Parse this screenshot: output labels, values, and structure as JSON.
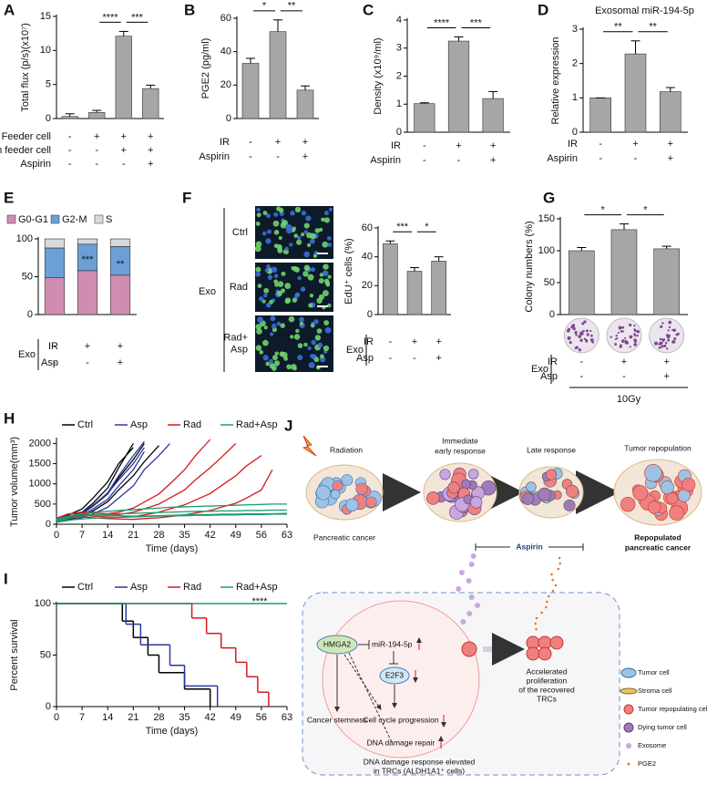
{
  "chart_data": [
    {
      "panel": "A",
      "type": "bar",
      "ylabel": "Total flux (p/s)(x10⁷)",
      "values": [
        0.3,
        0.9,
        12.1,
        4.4
      ],
      "errors": [
        0.4,
        0.3,
        0.7,
        0.5
      ],
      "color": "#a6a6a6",
      "ylim": [
        0,
        15
      ],
      "yticks": [
        0,
        5,
        10,
        15
      ],
      "conditions": [
        {
          "label": "Feeder cell",
          "values": [
            "-",
            "+",
            "+",
            "+"
          ]
        },
        {
          "label": "IR in feeder cell",
          "values": [
            "-",
            "-",
            "+",
            "+"
          ]
        },
        {
          "label": "Aspirin",
          "values": [
            "-",
            "-",
            "-",
            "+"
          ]
        }
      ],
      "comparisons": [
        {
          "label": "****",
          "between": [
            1,
            2
          ]
        },
        {
          "label": "***",
          "between": [
            2,
            3
          ]
        }
      ]
    },
    {
      "panel": "B",
      "type": "bar",
      "ylabel": "PGE2 (pg/ml)",
      "values": [
        33,
        52,
        17
      ],
      "errors": [
        3,
        7,
        2.5
      ],
      "color": "#a6a6a6",
      "ylim": [
        0,
        60
      ],
      "yticks": [
        0,
        20,
        40,
        60
      ],
      "conditions": [
        {
          "label": "IR",
          "values": [
            "-",
            "+",
            "+"
          ]
        },
        {
          "label": "Aspirin",
          "values": [
            "-",
            "-",
            "+"
          ]
        }
      ],
      "comparisons": [
        {
          "label": "*",
          "between": [
            0,
            1
          ]
        },
        {
          "label": "**",
          "between": [
            1,
            2
          ]
        }
      ]
    },
    {
      "panel": "C",
      "type": "bar",
      "ylabel": "Density (x10⁹/ml)",
      "values": [
        1.02,
        3.25,
        1.2
      ],
      "errors": [
        0.03,
        0.15,
        0.25
      ],
      "color": "#a6a6a6",
      "ylim": [
        0,
        4
      ],
      "yticks": [
        0,
        1,
        2,
        3,
        4
      ],
      "conditions": [
        {
          "label": "IR",
          "values": [
            "-",
            "+",
            "+"
          ]
        },
        {
          "label": "Aspirin",
          "values": [
            "-",
            "-",
            "+"
          ]
        }
      ],
      "comparisons": [
        {
          "label": "****",
          "between": [
            0,
            1
          ]
        },
        {
          "label": "***",
          "between": [
            1,
            2
          ]
        }
      ]
    },
    {
      "panel": "D",
      "type": "bar",
      "title": "Exosomal miR-194-5p",
      "ylabel": "Relative expression",
      "values": [
        1,
        2.28,
        1.18
      ],
      "errors": [
        0,
        0.38,
        0.12
      ],
      "color": "#a6a6a6",
      "ylim": [
        0,
        3
      ],
      "yticks": [
        0,
        1,
        2,
        3
      ],
      "conditions": [
        {
          "label": "IR",
          "values": [
            "-",
            "+",
            "+"
          ]
        },
        {
          "label": "Aspirin",
          "values": [
            "-",
            "-",
            "+"
          ]
        }
      ],
      "comparisons": [
        {
          "label": "**",
          "between": [
            0,
            1
          ]
        },
        {
          "label": "**",
          "between": [
            1,
            2
          ]
        }
      ]
    },
    {
      "panel": "E",
      "type": "stacked_bar",
      "series": [
        {
          "name": "G0-G1",
          "color": "#cf8db1",
          "values": [
            49,
            58,
            52
          ]
        },
        {
          "name": "G2-M",
          "color": "#6c9fd6",
          "values": [
            39,
            35,
            38
          ]
        },
        {
          "name": "S",
          "color": "#d9d9d9",
          "values": [
            12,
            7,
            10
          ]
        }
      ],
      "ylim": [
        0,
        100
      ],
      "yticks": [
        0,
        50,
        100
      ],
      "annotations": [
        {
          "label": "***",
          "category": 1
        },
        {
          "label": "**",
          "category": 2
        }
      ],
      "group_label": "Exo",
      "conditions": [
        {
          "label": "IR",
          "values": [
            "-",
            "+",
            "+"
          ]
        },
        {
          "label": "Asp",
          "values": [
            "-",
            "-",
            "+"
          ]
        }
      ]
    },
    {
      "panel": "F",
      "type": "bar",
      "image_labels": [
        [
          "Ctrl"
        ],
        [
          "Rad"
        ],
        [
          "Rad+",
          "Asp"
        ]
      ],
      "image_group_label": "Exo",
      "ylabel": "EdU⁺ cells (%)",
      "values": [
        49,
        30,
        37
      ],
      "errors": [
        2,
        2.5,
        3
      ],
      "color": "#a6a6a6",
      "ylim": [
        0,
        60
      ],
      "yticks": [
        0,
        20,
        40,
        60
      ],
      "group_label": "Exo",
      "conditions": [
        {
          "label": "IR",
          "values": [
            "-",
            "+",
            "+"
          ]
        },
        {
          "label": "Asp",
          "values": [
            "-",
            "-",
            "+"
          ]
        }
      ],
      "comparisons": [
        {
          "label": "***",
          "between": [
            0,
            1
          ]
        },
        {
          "label": "*",
          "between": [
            1,
            2
          ]
        }
      ]
    },
    {
      "panel": "G",
      "type": "bar",
      "ylabel": "Colony numbers (%)",
      "values": [
        100,
        133,
        103
      ],
      "errors": [
        5,
        9,
        4
      ],
      "color": "#a6a6a6",
      "ylim": [
        0,
        150
      ],
      "yticks": [
        0,
        50,
        100,
        150
      ],
      "group_label": "Exo",
      "dose_label": "10Gy",
      "conditions": [
        {
          "label": "IR",
          "values": [
            "-",
            "+",
            "+"
          ]
        },
        {
          "label": "Asp",
          "values": [
            "-",
            "-",
            "+"
          ]
        }
      ],
      "comparisons": [
        {
          "label": "*",
          "between": [
            0,
            1
          ]
        },
        {
          "label": "*",
          "between": [
            1,
            2
          ]
        }
      ]
    },
    {
      "panel": "H",
      "type": "line",
      "ylabel": "Tumor volume(mm³)",
      "xlabel": "Time (days)",
      "x": [
        0,
        3,
        7,
        10,
        14,
        17,
        21,
        24,
        28,
        31,
        35,
        38,
        42,
        45,
        49,
        52,
        56,
        59,
        63
      ],
      "xlim": [
        0,
        63
      ],
      "xticks": [
        0,
        7,
        14,
        21,
        28,
        35,
        42,
        49,
        56,
        63
      ],
      "ylim": [
        0,
        2100
      ],
      "yticks": [
        0,
        500,
        1000,
        1500,
        2000
      ],
      "series": [
        {
          "name": "Ctrl",
          "color": "#000000",
          "values": [
            [
              100,
              180,
              300,
              520,
              900,
              1400,
              2000,
              null,
              null,
              null,
              null,
              null,
              null,
              null,
              null,
              null,
              null,
              null,
              null
            ],
            [
              80,
              150,
              260,
              450,
              750,
              1150,
              1600,
              2000,
              null,
              null,
              null,
              null,
              null,
              null,
              null,
              null,
              null,
              null,
              null
            ],
            [
              120,
              220,
              380,
              650,
              1050,
              1500,
              1900,
              null,
              null,
              null,
              null,
              null,
              null,
              null,
              null,
              null,
              null,
              null,
              null
            ],
            [
              60,
              110,
              200,
              330,
              560,
              850,
              1200,
              1550,
              1950,
              null,
              null,
              null,
              null,
              null,
              null,
              null,
              null,
              null,
              null
            ]
          ]
        },
        {
          "name": "Asp",
          "color": "#2b3a9c",
          "values": [
            [
              90,
              160,
              280,
              460,
              780,
              1200,
              1700,
              2050,
              null,
              null,
              null,
              null,
              null,
              null,
              null,
              null,
              null,
              null,
              null
            ],
            [
              70,
              130,
              220,
              380,
              620,
              950,
              1350,
              1800,
              null,
              null,
              null,
              null,
              null,
              null,
              null,
              null,
              null,
              null,
              null
            ],
            [
              100,
              170,
              290,
              470,
              760,
              1100,
              1500,
              1900,
              null,
              null,
              null,
              null,
              null,
              null,
              null,
              null,
              null,
              null,
              null
            ],
            [
              50,
              90,
              160,
              260,
              420,
              650,
              950,
              1350,
              1700,
              2000,
              null,
              null,
              null,
              null,
              null,
              null,
              null,
              null,
              null
            ]
          ]
        },
        {
          "name": "Rad",
          "color": "#d7191c",
          "values": [
            [
              150,
              250,
              300,
              280,
              260,
              300,
              400,
              550,
              750,
              1000,
              1350,
              1700,
              2100,
              null,
              null,
              null,
              null,
              null,
              null
            ],
            [
              120,
              200,
              250,
              230,
              220,
              240,
              300,
              380,
              500,
              650,
              850,
              1100,
              1400,
              1650,
              2000,
              null,
              null,
              null,
              null
            ],
            [
              100,
              180,
              220,
              200,
              180,
              170,
              190,
              230,
              300,
              380,
              480,
              600,
              760,
              950,
              1200,
              1450,
              1700,
              null,
              null
            ],
            [
              80,
              150,
              180,
              160,
              140,
              130,
              120,
              140,
              160,
              190,
              230,
              280,
              340,
              420,
              520,
              650,
              850,
              1350,
              null
            ]
          ]
        },
        {
          "name": "Rad+Asp",
          "color": "#1a9e6f",
          "values": [
            [
              100,
              180,
              250,
              300,
              320,
              340,
              360,
              380,
              400,
              420,
              430,
              440,
              450,
              460,
              470,
              480,
              490,
              500,
              500
            ],
            [
              80,
              140,
              200,
              230,
              250,
              260,
              270,
              280,
              290,
              300,
              310,
              320,
              320,
              330,
              330,
              340,
              340,
              350,
              350
            ],
            [
              120,
              200,
              260,
              240,
              220,
              210,
              200,
              200,
              210,
              220,
              230,
              240,
              240,
              250,
              250,
              260,
              260,
              260,
              270
            ],
            [
              60,
              100,
              130,
              150,
              160,
              170,
              180,
              190,
              200,
              210,
              210,
              220,
              220,
              230,
              230,
              240,
              240,
              250,
              250
            ]
          ]
        }
      ]
    },
    {
      "panel": "I",
      "type": "survival",
      "ylabel": "Percent survival",
      "xlabel": "Time (days)",
      "xlim": [
        0,
        63
      ],
      "xticks": [
        0,
        7,
        14,
        21,
        28,
        35,
        42,
        49,
        56,
        63
      ],
      "ylim": [
        0,
        100
      ],
      "yticks": [
        0,
        50,
        100
      ],
      "annotation": "****",
      "series": [
        {
          "name": "Ctrl",
          "color": "#000000",
          "x": [
            0,
            18,
            21,
            25,
            28,
            35,
            42
          ],
          "values": [
            100,
            83,
            67,
            50,
            33,
            17,
            0
          ]
        },
        {
          "name": "Asp",
          "color": "#2b3a9c",
          "x": [
            0,
            19,
            23,
            31,
            35,
            44
          ],
          "values": [
            100,
            80,
            60,
            40,
            20,
            0
          ]
        },
        {
          "name": "Rad",
          "color": "#d7191c",
          "x": [
            0,
            37,
            41,
            45,
            49,
            52,
            55,
            58
          ],
          "values": [
            100,
            86,
            71,
            57,
            43,
            29,
            14,
            0
          ]
        },
        {
          "name": "Rad+Asp",
          "color": "#1a9e6f",
          "x": [
            0,
            63
          ],
          "values": [
            100,
            100
          ]
        }
      ]
    }
  ],
  "diagram": {
    "panel": "J",
    "radiation": "Radiation",
    "pancreatic_cancer": "Pancreatic cancer",
    "early_response": [
      "Immediate",
      "early response"
    ],
    "late_response": "Late response",
    "tumor_repopulation": "Tumor repopulation",
    "repopulated": [
      "Repopulated",
      "pancreatic cancer"
    ],
    "aspirin": "Aspirin",
    "hmga2": "HMGA2",
    "mir": "miR-194-5p",
    "e2f3": "E2F3",
    "stemness": "Cancer stemness",
    "cell_cycle": "Cell cycle progression",
    "dna_repair": "DNA damage repair",
    "dna_response": [
      "DNA damage response elevated",
      "in TRCs (ALDH1A1⁺ cells)"
    ],
    "proliferation": [
      "Accelerated",
      "proliferation",
      "of the recovered",
      "TRCs"
    ],
    "legend": [
      "Tumor cell",
      "Stroma cell",
      "Tumor repopulating cell",
      "Dying tumor cell",
      "Exosome",
      "PGE2"
    ]
  }
}
